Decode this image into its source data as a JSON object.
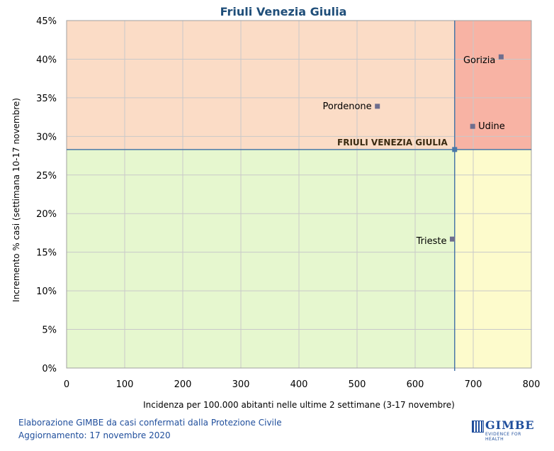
{
  "chart_data": {
    "type": "scatter",
    "title": "Friuli Venezia Giulia",
    "xlabel": "Incidenza per 100.000 abitanti nelle ultime 2 settimane (3-17 novembre)",
    "ylabel": "Incremento % casi (settimana 10-17 novembre)",
    "xlim": [
      0,
      800
    ],
    "ylim": [
      0,
      45
    ],
    "x_ticks": [
      0,
      100,
      200,
      300,
      400,
      500,
      600,
      700,
      800
    ],
    "y_ticks": [
      0,
      5,
      10,
      15,
      20,
      25,
      30,
      35,
      40,
      45
    ],
    "y_tick_labels": [
      "0%",
      "5%",
      "10%",
      "15%",
      "20%",
      "25%",
      "30%",
      "35%",
      "40%",
      "45%"
    ],
    "grid": true,
    "reference": {
      "label": "FRIULI VENEZIA GIULIA",
      "x": 668,
      "y": 28.3
    },
    "points": [
      {
        "label": "Gorizia",
        "x": 748,
        "y": 40.3
      },
      {
        "label": "Pordenone",
        "x": 535,
        "y": 33.9
      },
      {
        "label": "Udine",
        "x": 699,
        "y": 31.3
      },
      {
        "label": "Trieste",
        "x": 664,
        "y": 16.7
      }
    ],
    "quadrant_colors": {
      "top_left": "#fbdcc6",
      "top_right": "#f8b3a4",
      "bottom_left": "#e6f7cf",
      "bottom_right": "#fdfbcc"
    },
    "marker_color": "#6e6e8e",
    "reference_line_color": "#4a78a8"
  },
  "footer": {
    "line1": "Elaborazione GIMBE da casi confermati dalla Protezione Civile",
    "line2": "Aggiornamento: 17 novembre 2020"
  },
  "logo": {
    "name": "GIMBE",
    "tagline": "EVIDENCE FOR HEALTH"
  }
}
